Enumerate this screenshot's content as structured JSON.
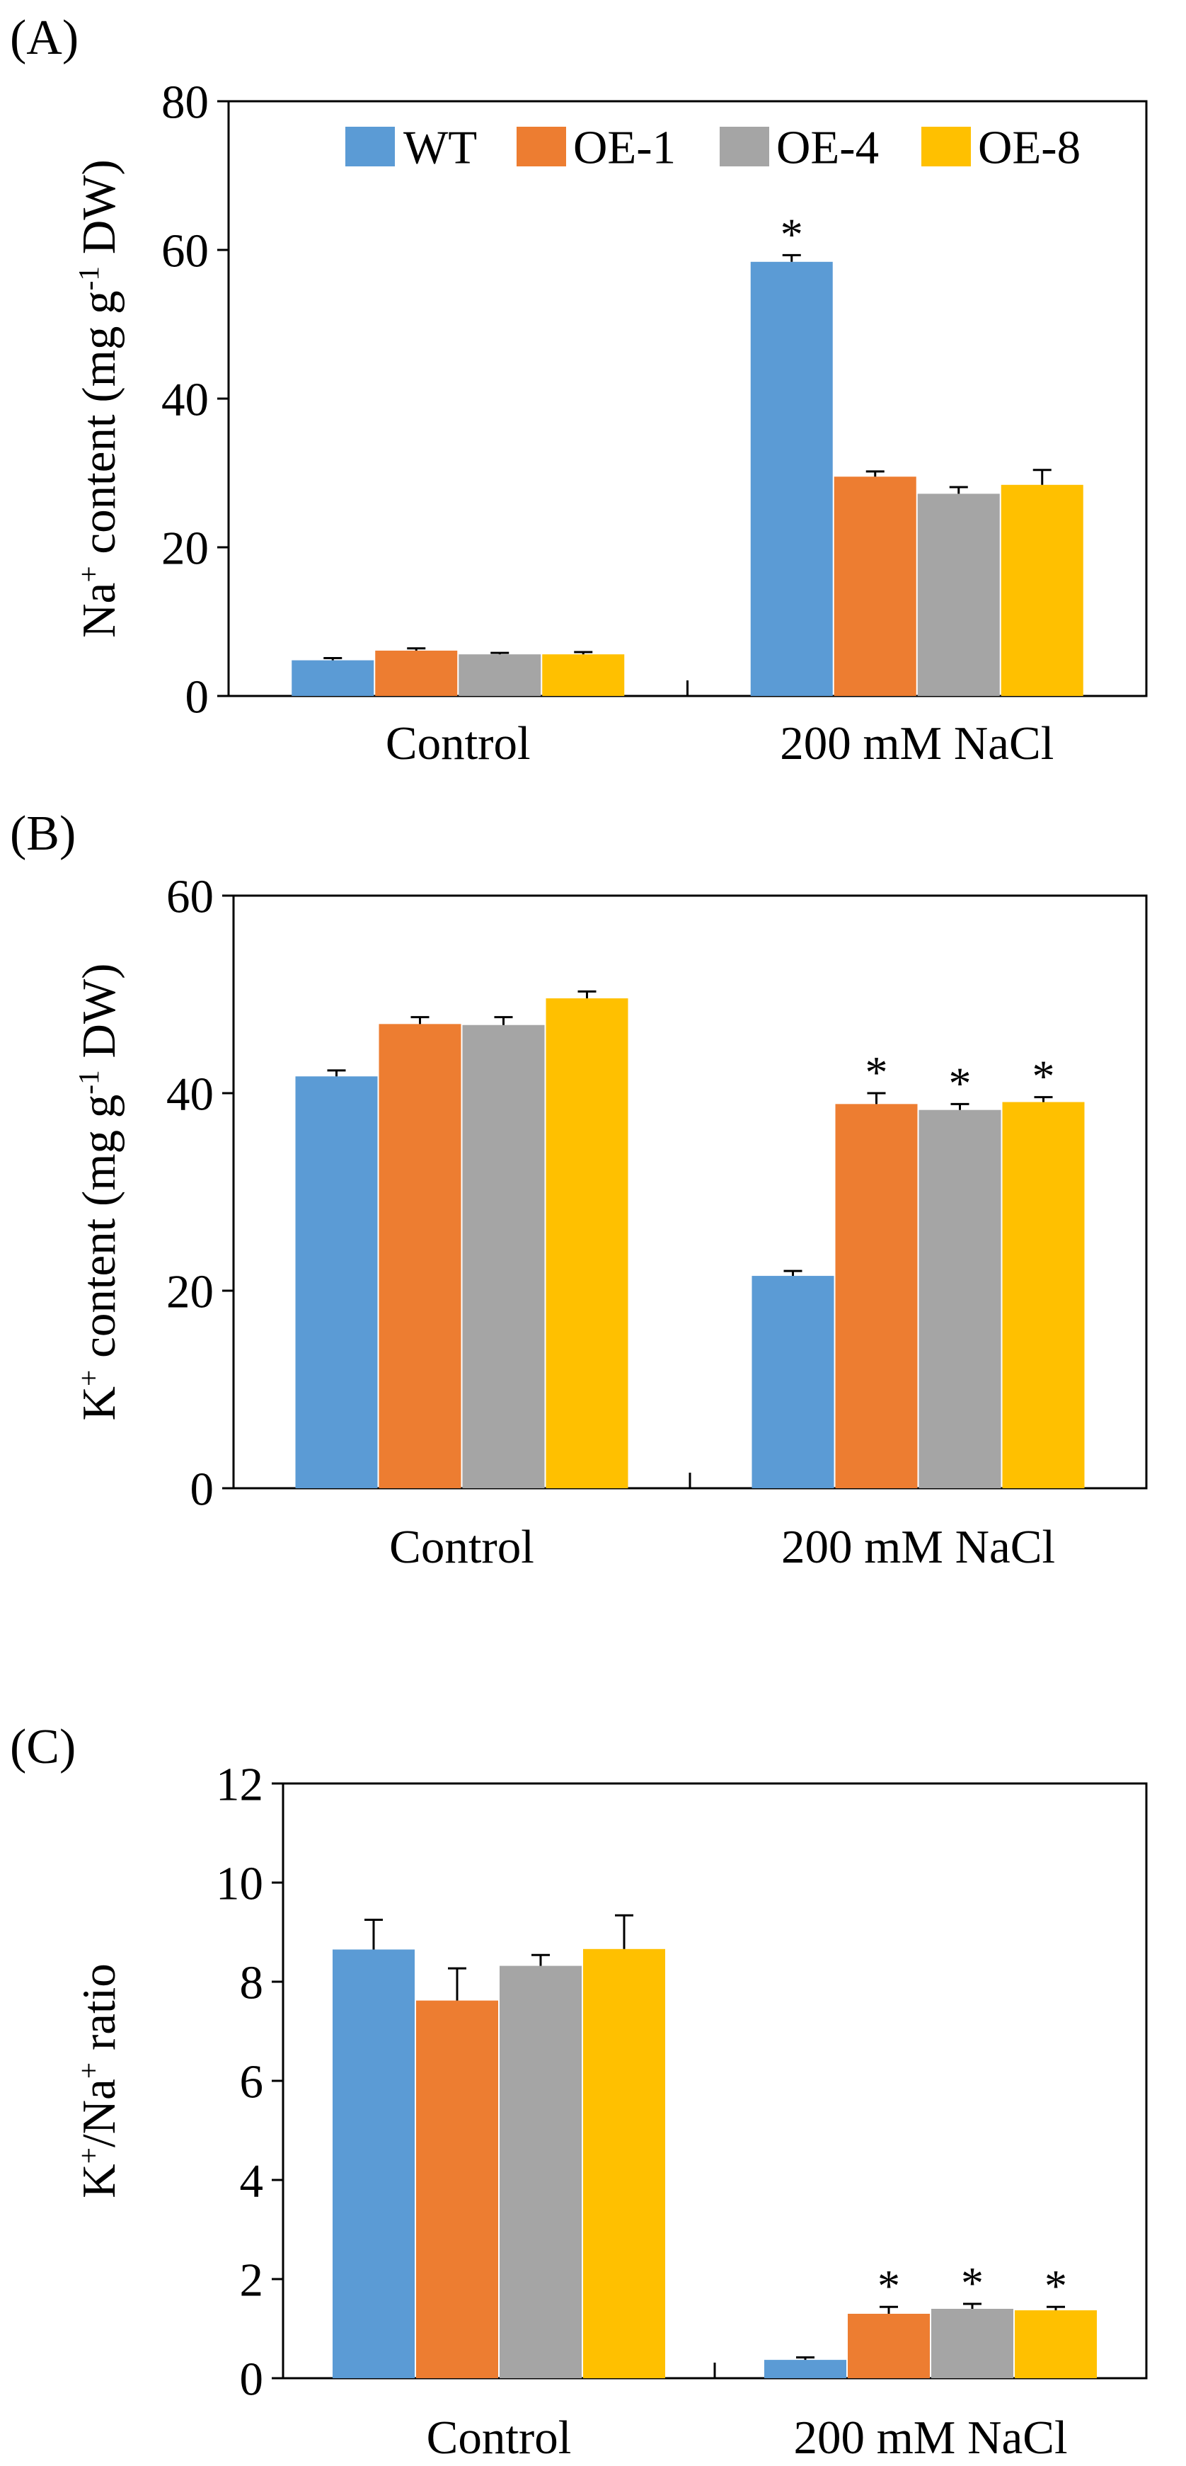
{
  "chart_data": [
    {
      "panel_label": "(A)",
      "type": "bar",
      "categories": [
        "Control",
        "200 mM NaCl"
      ],
      "series": [
        {
          "name": "WT",
          "values": [
            4.8,
            58.4
          ],
          "errors": [
            0.3,
            0.9
          ]
        },
        {
          "name": "OE-1",
          "values": [
            6.1,
            29.5
          ],
          "errors": [
            0.3,
            0.7
          ]
        },
        {
          "name": "OE-4",
          "values": [
            5.6,
            27.2
          ],
          "errors": [
            0.2,
            0.9
          ]
        },
        {
          "name": "OE-8",
          "values": [
            5.6,
            28.4
          ],
          "errors": [
            0.3,
            2.0
          ]
        }
      ],
      "significance": [
        [
          "",
          "",
          "",
          ""
        ],
        [
          "*",
          "",
          "",
          ""
        ]
      ],
      "ylabel": {
        "prefix": "Na",
        "sup": "+",
        "mid": " content (mg g",
        "sup2": "-1",
        "suffix": " DW)"
      },
      "ylim": [
        0,
        80
      ],
      "yticks": [
        0,
        20,
        40,
        60,
        80
      ],
      "legend": "top-center"
    },
    {
      "panel_label": "(B)",
      "type": "bar",
      "categories": [
        "Control",
        "200 mM NaCl"
      ],
      "series": [
        {
          "name": "WT",
          "values": [
            41.7,
            21.5
          ],
          "errors": [
            0.6,
            0.5
          ]
        },
        {
          "name": "OE-1",
          "values": [
            47.0,
            38.9
          ],
          "errors": [
            0.7,
            1.1
          ]
        },
        {
          "name": "OE-4",
          "values": [
            46.9,
            38.3
          ],
          "errors": [
            0.8,
            0.6
          ]
        },
        {
          "name": "OE-8",
          "values": [
            49.6,
            39.1
          ],
          "errors": [
            0.7,
            0.5
          ]
        }
      ],
      "significance": [
        [
          "",
          "",
          "",
          ""
        ],
        [
          "",
          "*",
          "*",
          "*"
        ]
      ],
      "ylabel": {
        "prefix": "K",
        "sup": "+",
        "mid": " content (mg g",
        "sup2": "-1",
        "suffix": " DW)"
      },
      "ylim": [
        0,
        60
      ],
      "yticks": [
        0,
        20,
        40,
        60
      ]
    },
    {
      "panel_label": "(C)",
      "type": "bar",
      "categories": [
        "Control",
        "200 mM NaCl"
      ],
      "series": [
        {
          "name": "WT",
          "values": [
            8.65,
            0.37
          ],
          "errors": [
            0.6,
            0.05
          ]
        },
        {
          "name": "OE-1",
          "values": [
            7.62,
            1.3
          ],
          "errors": [
            0.65,
            0.14
          ]
        },
        {
          "name": "OE-4",
          "values": [
            8.32,
            1.4
          ],
          "errors": [
            0.22,
            0.1
          ]
        },
        {
          "name": "OE-8",
          "values": [
            8.66,
            1.37
          ],
          "errors": [
            0.68,
            0.07
          ]
        }
      ],
      "significance": [
        [
          "",
          "",
          "",
          ""
        ],
        [
          "",
          "*",
          "*",
          "*"
        ]
      ],
      "ylabel": {
        "prefix": "K",
        "sup": "+",
        "mid": "/Na",
        "sup2": "+",
        "suffix": " ratio"
      },
      "ylim": [
        0,
        12
      ],
      "yticks": [
        0,
        2,
        4,
        6,
        8,
        10,
        12
      ]
    }
  ],
  "colors": {
    "WT": "#5b9bd5",
    "OE-1": "#ed7d31",
    "OE-4": "#a5a5a5",
    "OE-8": "#ffc000",
    "axis": "#000000"
  }
}
